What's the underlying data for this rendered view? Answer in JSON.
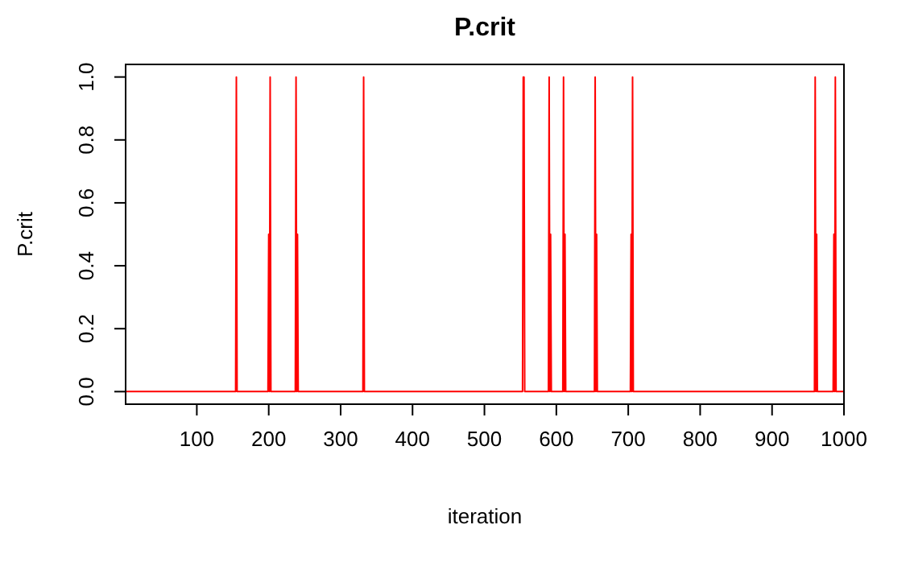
{
  "chart_data": {
    "type": "line",
    "title": "P.crit",
    "xlabel": "iteration",
    "ylabel": "P.crit",
    "x": [
      1,
      154,
      155,
      156,
      199,
      200,
      201,
      202,
      203,
      237,
      238,
      239,
      240,
      241,
      331,
      332,
      333,
      553,
      554,
      555,
      556,
      589,
      590,
      591,
      592,
      593,
      609,
      610,
      611,
      612,
      613,
      653,
      654,
      655,
      656,
      657,
      703,
      704,
      705,
      706,
      707,
      959,
      960,
      961,
      962,
      963,
      985,
      986,
      987,
      988,
      989,
      1000
    ],
    "series": [
      {
        "color": "#ff0000",
        "values": [
          0,
          0,
          1,
          0,
          0,
          0.5,
          0,
          1,
          0,
          0,
          1,
          0,
          0.5,
          0,
          0,
          1,
          0,
          0,
          1,
          1,
          0,
          0,
          1,
          0,
          0.5,
          0,
          0,
          1,
          0,
          0.5,
          0,
          0,
          1,
          0,
          0.5,
          0,
          0,
          0.5,
          0,
          1,
          0,
          0,
          1,
          0,
          0.5,
          0,
          0,
          0.5,
          0,
          1,
          0,
          0
        ]
      }
    ],
    "xlim": [
      1,
      1000
    ],
    "xticks": [
      100,
      200,
      300,
      400,
      500,
      600,
      700,
      800,
      900,
      1000
    ],
    "ylim": [
      -0.04,
      1.04
    ],
    "yticks": [
      {
        "value": 0,
        "label": "0.0"
      },
      {
        "value": 0.2,
        "label": "0.2"
      },
      {
        "value": 0.4,
        "label": "0.4"
      },
      {
        "value": 0.6,
        "label": "0.6"
      },
      {
        "value": 0.8,
        "label": "0.8"
      },
      {
        "value": 1,
        "label": "1.0"
      }
    ],
    "grid": false,
    "marker": "none",
    "line_style": "solid"
  }
}
